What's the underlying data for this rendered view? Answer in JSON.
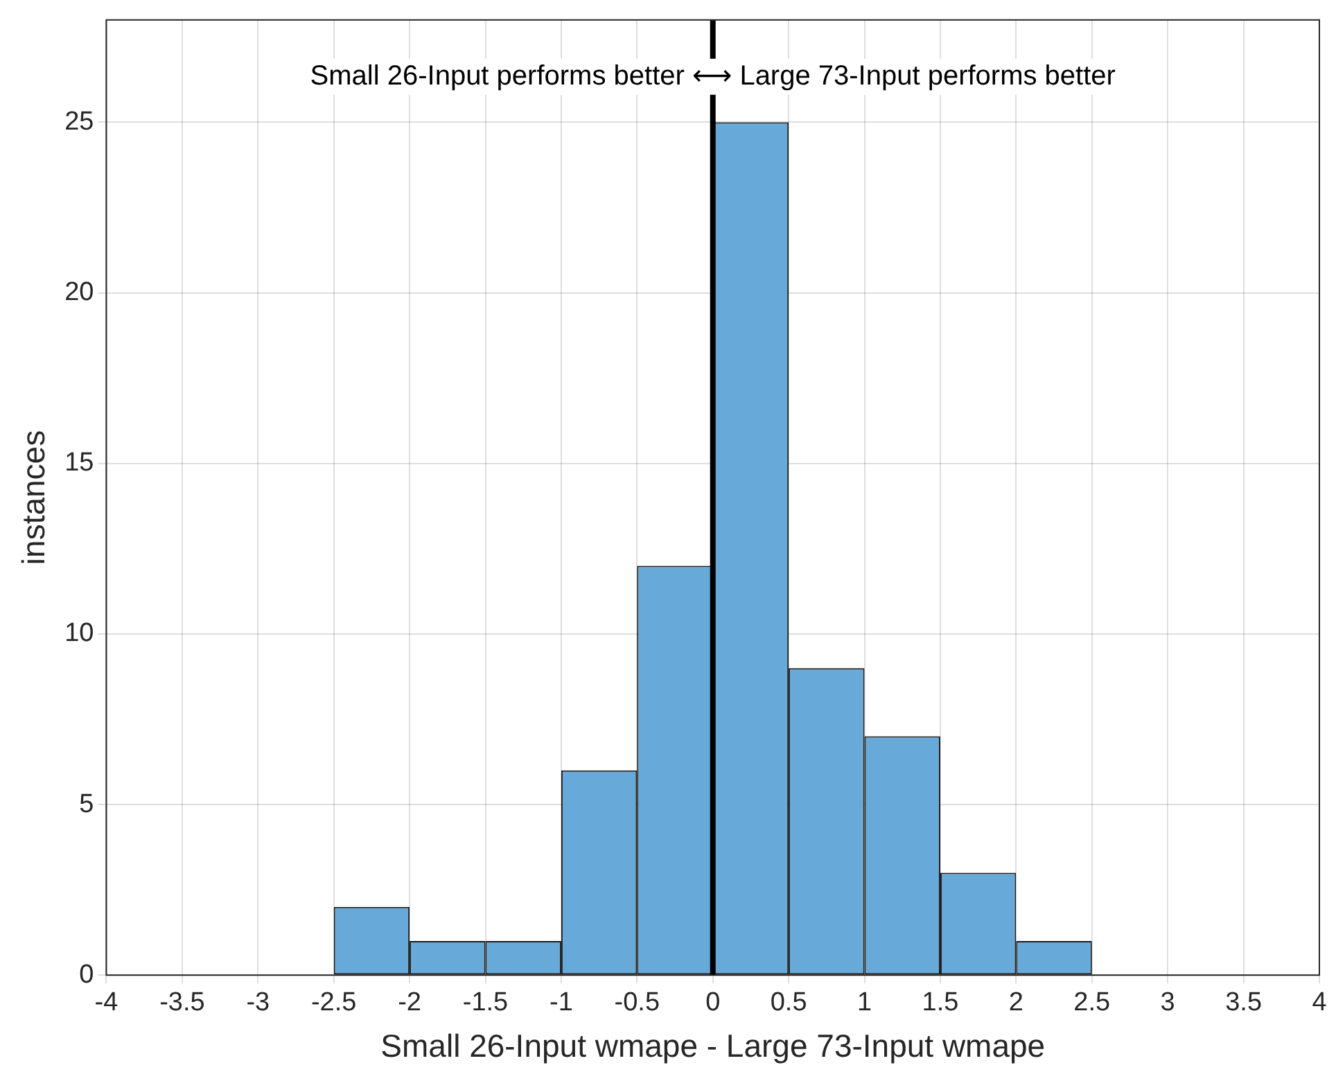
{
  "chart_data": {
    "type": "histogram",
    "xlabel": "Small 26-Input wmape - Large 73-Input wmape",
    "ylabel": "instances",
    "bins": [
      -4,
      -3.5,
      -3,
      -2.5,
      -2,
      -1.5,
      -1,
      -0.5,
      0,
      0.5,
      1,
      1.5,
      2,
      2.5,
      3,
      3.5,
      4
    ],
    "values": [
      0,
      0,
      0,
      2,
      1,
      1,
      6,
      12,
      25,
      9,
      7,
      3,
      1,
      0,
      0,
      0
    ],
    "color": "#67aad9",
    "xlim": [
      -4,
      4
    ],
    "xticks": [
      -4,
      -3.5,
      -3,
      -2.5,
      -2,
      -1.5,
      -1,
      -0.5,
      0,
      0.5,
      1,
      1.5,
      2,
      2.5,
      3,
      3.5,
      4
    ],
    "ylim": [
      0,
      28
    ],
    "yticks": [
      0,
      5,
      10,
      15,
      20,
      25
    ],
    "grid": true,
    "legend": false,
    "ref_lines": [
      {
        "axis": "x",
        "value": 0,
        "color": "#000000"
      }
    ],
    "annotations": [
      "Small 26-Input performs better ⟷ Large 73-Input performs better"
    ]
  }
}
